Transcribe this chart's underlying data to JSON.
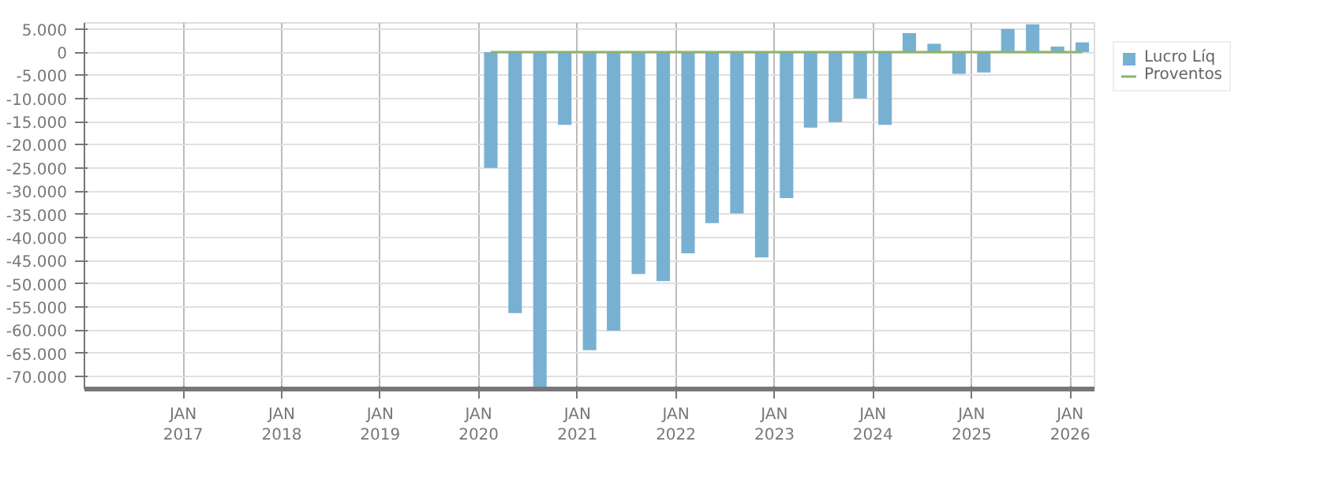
{
  "chart_data": {
    "type": "bar",
    "x": [
      "2020-02-15",
      "2020-05-15",
      "2020-08-15",
      "2020-11-15",
      "2021-02-15",
      "2021-05-15",
      "2021-08-15",
      "2021-11-15",
      "2022-02-15",
      "2022-05-15",
      "2022-08-15",
      "2022-11-15",
      "2023-02-15",
      "2023-05-15",
      "2023-08-15",
      "2023-11-15",
      "2024-02-15",
      "2024-05-15",
      "2024-08-15",
      "2024-11-15",
      "2025-02-15",
      "2025-05-15",
      "2025-08-15",
      "2025-11-15",
      "2026-02-15"
    ],
    "series": [
      {
        "name": "Lucro Líq",
        "color": "#78b0d2",
        "values": [
          -25000,
          -56300,
          -72700,
          -15700,
          -64300,
          -60100,
          -47900,
          -49400,
          -43400,
          -36900,
          -34800,
          -44300,
          -31500,
          -16300,
          -15100,
          -10000,
          -15700,
          4100,
          1800,
          -4700,
          -4400,
          5000,
          6000,
          1200,
          2100
        ]
      },
      {
        "name": "Proventos",
        "color": "#8db36b",
        "type": "line",
        "values": [
          0,
          0,
          0,
          0,
          0,
          0,
          0,
          0,
          0,
          0,
          0,
          0,
          0,
          0,
          0,
          0,
          0,
          0,
          0,
          0,
          0,
          0,
          0,
          0,
          0
        ]
      }
    ],
    "xlim": [
      "2016-01",
      "2026-04"
    ],
    "xticks": [
      {
        "value": "2017-01",
        "label": "JAN\n2017"
      },
      {
        "value": "2018-01",
        "label": "JAN\n2018"
      },
      {
        "value": "2019-01",
        "label": "JAN\n2019"
      },
      {
        "value": "2020-01",
        "label": "JAN\n2020"
      },
      {
        "value": "2021-01",
        "label": "JAN\n2021"
      },
      {
        "value": "2022-01",
        "label": "JAN\n2022"
      },
      {
        "value": "2023-01",
        "label": "JAN\n2023"
      },
      {
        "value": "2024-01",
        "label": "JAN\n2024"
      },
      {
        "value": "2025-01",
        "label": "JAN\n2025"
      },
      {
        "value": "2026-01",
        "label": "JAN\n2026"
      }
    ],
    "ylim": [
      -72700,
      6300
    ],
    "yticks": [
      {
        "value": 5000,
        "label": "5.000"
      },
      0,
      {
        "value": -5000,
        "label": "-5.000"
      },
      {
        "value": -10000,
        "label": "-10.000"
      },
      {
        "value": -15000,
        "label": "-15.000"
      },
      {
        "value": -20000,
        "label": "-20.000"
      },
      {
        "value": -25000,
        "label": "-25.000"
      },
      {
        "value": -30000,
        "label": "-30.000"
      },
      {
        "value": -35000,
        "label": "-35.000"
      },
      {
        "value": -40000,
        "label": "-40.000"
      },
      {
        "value": -45000,
        "label": "-45.000"
      },
      {
        "value": -50000,
        "label": "-50.000"
      },
      {
        "value": -55000,
        "label": "-55.000"
      },
      {
        "value": -60000,
        "label": "-60.000"
      },
      {
        "value": -65000,
        "label": "-65.000"
      },
      {
        "value": -70000,
        "label": "-70.000"
      }
    ],
    "grid": true,
    "legend": "top right"
  }
}
